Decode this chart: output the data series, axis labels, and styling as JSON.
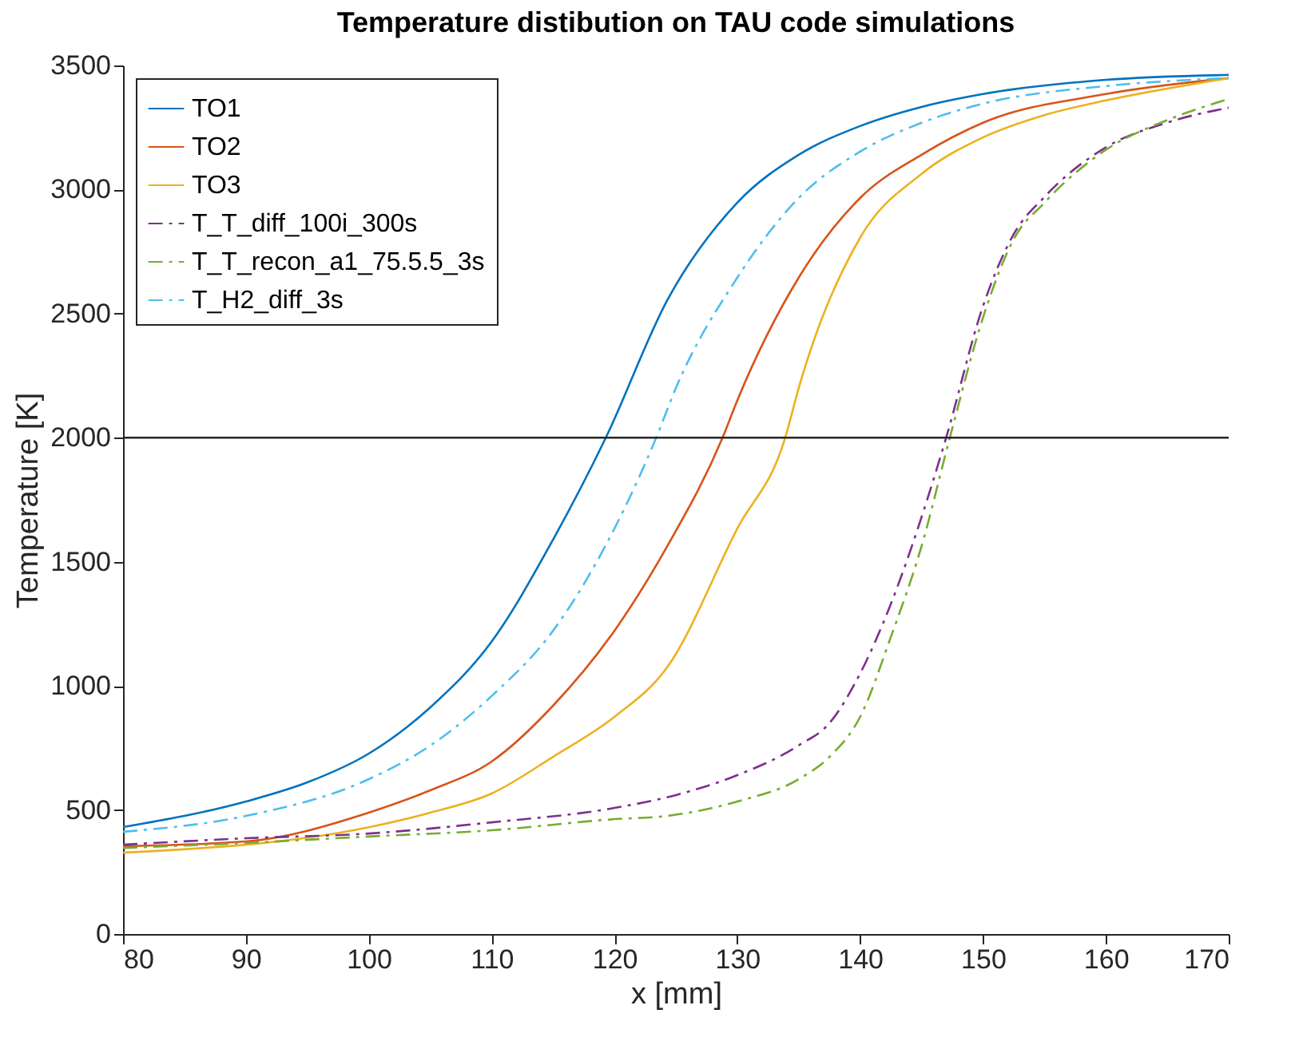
{
  "chart_data": {
    "type": "line",
    "title": "Temperature distibution on TAU code simulations",
    "xlabel": "x [mm]",
    "ylabel": "Temperature [K]",
    "xlim": [
      80,
      170
    ],
    "xticks": [
      80,
      90,
      100,
      110,
      120,
      130,
      140,
      150,
      160,
      170
    ],
    "ylim": [
      0,
      3500
    ],
    "yticks": [
      0,
      500,
      1000,
      1500,
      2000,
      2500,
      3000,
      3500
    ],
    "grid": false,
    "legend": "top left",
    "marker": "none",
    "ref_lines": [
      {
        "axis": "y",
        "value": 2000,
        "color": "#262626"
      }
    ],
    "series": [
      {
        "name": "TO1",
        "color": "#0072bd",
        "line_style": "solid",
        "x": [
          80,
          90,
          95,
          100,
          105,
          110,
          115,
          119.3,
          124.3,
          130,
          135,
          140,
          145,
          150,
          160,
          170
        ],
        "values": [
          431,
          534,
          611,
          727,
          913,
          1178,
          1589,
          2000,
          2554,
          2947,
          3140,
          3256,
          3333,
          3385,
          3442,
          3462
        ]
      },
      {
        "name": "TO2",
        "color": "#d95319",
        "line_style": "solid",
        "x": [
          80,
          90,
          100,
          105,
          110,
          115,
          120,
          124.3,
          128.8,
          130,
          135,
          140,
          145,
          150,
          160,
          170
        ],
        "values": [
          354,
          373,
          489,
          579,
          695,
          920,
          1222,
          1563,
          2000,
          2150,
          2645,
          2966,
          3140,
          3269,
          3385,
          3449
        ]
      },
      {
        "name": "TO3",
        "color": "#edb120",
        "line_style": "solid",
        "x": [
          80,
          100,
          105,
          110,
          115,
          120,
          124.3,
          130,
          133.9,
          135,
          140,
          145,
          150,
          155,
          160,
          170
        ],
        "values": [
          328,
          430,
          489,
          566,
          714,
          875,
          1075,
          1634,
          2000,
          2200,
          2806,
          3063,
          3210,
          3300,
          3359,
          3449
        ]
      },
      {
        "name": "T_T_diff_100i_300s",
        "color": "#7e2f8e",
        "line_style": "dashdot",
        "x": [
          80,
          90,
          100,
          110,
          120,
          125,
          130,
          135,
          137.5,
          140,
          142.5,
          145,
          147,
          150,
          152.5,
          155,
          160,
          165,
          170
        ],
        "values": [
          360,
          386,
          405,
          450,
          508,
          560,
          640,
          760,
          850,
          1050,
          1330,
          1680,
          2000,
          2530,
          2820,
          2970,
          3170,
          3270,
          3330
        ]
      },
      {
        "name": "T_T_recon_a1_75.5.5_3s",
        "color": "#77ac30",
        "line_style": "dashdot",
        "x": [
          80,
          90,
          100,
          110,
          120,
          124.3,
          130,
          135,
          137.5,
          140,
          142.5,
          145,
          147.3,
          150,
          152.5,
          155,
          160,
          165,
          170
        ],
        "values": [
          347,
          367,
          393,
          418,
          463,
          476,
          534,
          624,
          714,
          875,
          1197,
          1563,
          2000,
          2484,
          2800,
          2947,
          3160,
          3280,
          3365
        ]
      },
      {
        "name": "T_H2_diff_3s",
        "color": "#4dbeee",
        "line_style": "dashdot",
        "x": [
          80,
          90,
          100,
          105,
          110,
          115,
          120,
          123.4,
          125,
          130,
          135,
          140,
          145,
          150,
          160,
          170
        ],
        "values": [
          412,
          476,
          624,
          759,
          959,
          1222,
          1634,
          2000,
          2200,
          2645,
          2966,
          3153,
          3269,
          3346,
          3417,
          3449
        ]
      }
    ]
  }
}
